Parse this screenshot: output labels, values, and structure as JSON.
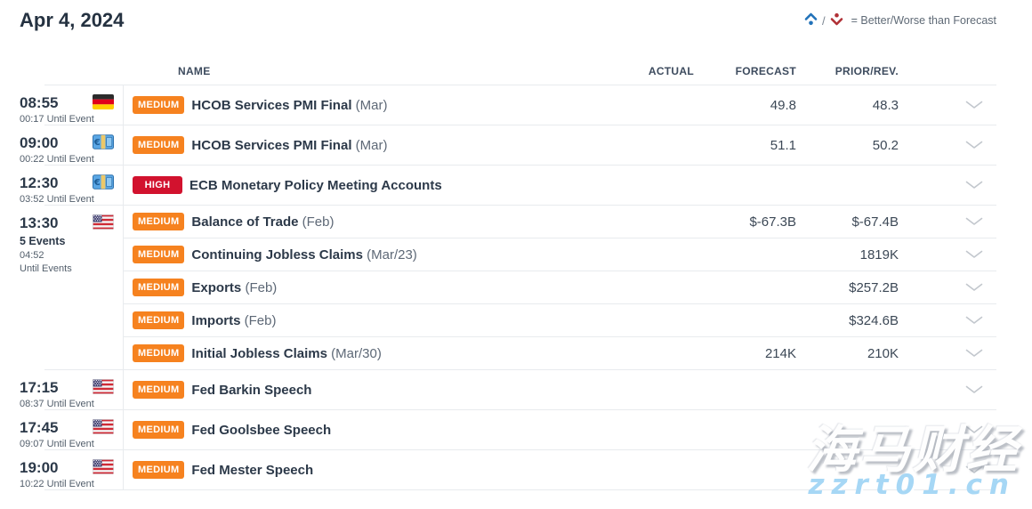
{
  "page": {
    "title": "Apr 4, 2024",
    "legend": {
      "text": "= Better/Worse than Forecast",
      "better_icon": "chevron-up-with-dot",
      "worse_icon": "chevron-down-with-dot",
      "better_color": "#2272b9",
      "worse_color": "#b03036",
      "slash": "/"
    }
  },
  "table": {
    "columns": {
      "name": "NAME",
      "actual": "ACTUAL",
      "forecast": "FORECAST",
      "prior": "PRIOR/REV."
    },
    "impact_colors": {
      "MEDIUM": "#f6821f",
      "HIGH": "#d2122e"
    },
    "groups": [
      {
        "time": "08:55",
        "sublines": [
          {
            "text": "00:17 Until Event",
            "bold": false
          }
        ],
        "flag": "germany",
        "events": [
          {
            "impact": "MEDIUM",
            "name": "HCOB Services PMI Final",
            "period": "(Mar)",
            "actual": "",
            "forecast": "49.8",
            "prior": "48.3"
          }
        ]
      },
      {
        "time": "09:00",
        "sublines": [
          {
            "text": "00:22 Until Event",
            "bold": false
          }
        ],
        "flag": "euro-area",
        "events": [
          {
            "impact": "MEDIUM",
            "name": "HCOB Services PMI Final",
            "period": "(Mar)",
            "actual": "",
            "forecast": "51.1",
            "prior": "50.2"
          }
        ]
      },
      {
        "time": "12:30",
        "sublines": [
          {
            "text": "03:52 Until Event",
            "bold": false
          }
        ],
        "flag": "euro-area",
        "events": [
          {
            "impact": "HIGH",
            "name": "ECB Monetary Policy Meeting Accounts",
            "period": "",
            "actual": "",
            "forecast": "",
            "prior": ""
          }
        ]
      },
      {
        "time": "13:30",
        "sublines": [
          {
            "text": "5 Events",
            "bold": true
          },
          {
            "text": "04:52",
            "bold": false
          },
          {
            "text": "Until Events",
            "bold": false
          }
        ],
        "flag": "united-states",
        "events": [
          {
            "impact": "MEDIUM",
            "name": "Balance of Trade",
            "period": "(Feb)",
            "actual": "",
            "forecast": "$-67.3B",
            "prior": "$-67.4B"
          },
          {
            "impact": "MEDIUM",
            "name": "Continuing Jobless Claims",
            "period": "(Mar/23)",
            "actual": "",
            "forecast": "",
            "prior": "1819K"
          },
          {
            "impact": "MEDIUM",
            "name": "Exports",
            "period": "(Feb)",
            "actual": "",
            "forecast": "",
            "prior": "$257.2B"
          },
          {
            "impact": "MEDIUM",
            "name": "Imports",
            "period": "(Feb)",
            "actual": "",
            "forecast": "",
            "prior": "$324.6B"
          },
          {
            "impact": "MEDIUM",
            "name": "Initial Jobless Claims",
            "period": "(Mar/30)",
            "actual": "",
            "forecast": "214K",
            "prior": "210K"
          }
        ]
      },
      {
        "time": "17:15",
        "sublines": [
          {
            "text": "08:37 Until Event",
            "bold": false
          }
        ],
        "flag": "united-states",
        "events": [
          {
            "impact": "MEDIUM",
            "name": "Fed Barkin Speech",
            "period": "",
            "actual": "",
            "forecast": "",
            "prior": ""
          }
        ]
      },
      {
        "time": "17:45",
        "sublines": [
          {
            "text": "09:07 Until Event",
            "bold": false
          }
        ],
        "flag": "united-states",
        "events": [
          {
            "impact": "MEDIUM",
            "name": "Fed Goolsbee Speech",
            "period": "",
            "actual": "",
            "forecast": "",
            "prior": ""
          }
        ]
      },
      {
        "time": "19:00",
        "sublines": [
          {
            "text": "10:22 Until Event",
            "bold": false
          }
        ],
        "flag": "united-states",
        "events": [
          {
            "impact": "MEDIUM",
            "name": "Fed Mester Speech",
            "period": "",
            "actual": "",
            "forecast": "",
            "prior": ""
          }
        ]
      }
    ]
  },
  "watermark": {
    "line1": "海马财经",
    "line2": "zzrt01.cn"
  }
}
